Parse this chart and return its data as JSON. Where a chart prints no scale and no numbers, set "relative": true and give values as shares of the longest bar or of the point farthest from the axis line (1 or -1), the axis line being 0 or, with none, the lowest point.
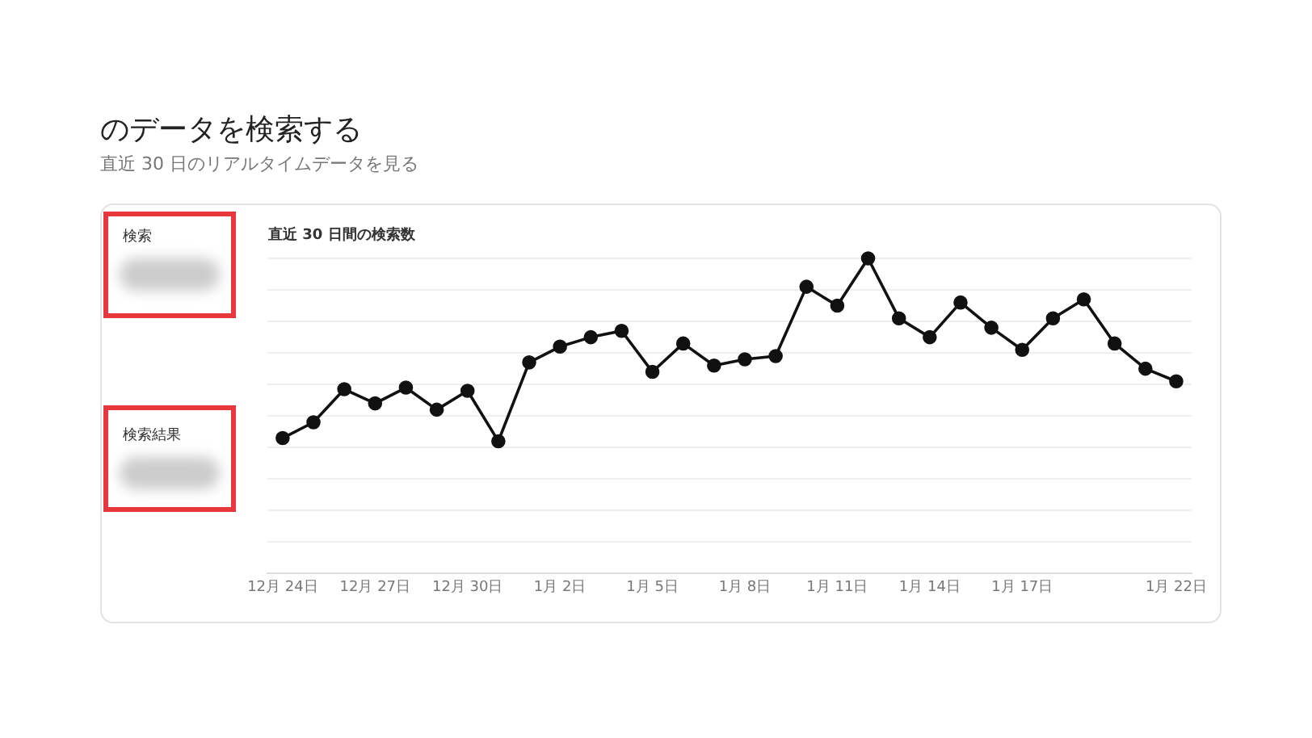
{
  "chart_data": {
    "type": "line",
    "title": "のデータを検索する",
    "subtitle": "直近 30 日のリアルタイムデータを見る",
    "ylabel": "直近 30 日間の検索数",
    "annotations": [
      "検索",
      "検索結果"
    ],
    "categories": [
      "12月 24日",
      null,
      null,
      "12月 27日",
      null,
      null,
      "12月 30日",
      null,
      null,
      "1月 2日",
      null,
      null,
      "1月 5日",
      null,
      null,
      "1月 8日",
      null,
      null,
      "1月 11日",
      null,
      null,
      "1月 14日",
      null,
      null,
      "1月 17日",
      null,
      null,
      null,
      null,
      "1月 22日"
    ],
    "series": [
      {
        "color": "#111111",
        "values": [
          0.43,
          0.48,
          0.585,
          0.54,
          0.59,
          0.52,
          0.58,
          0.42,
          0.67,
          0.72,
          0.75,
          0.77,
          0.64,
          0.73,
          0.66,
          0.68,
          0.69,
          0.91,
          0.85,
          1.0,
          0.81,
          0.75,
          0.86,
          0.78,
          0.71,
          0.81,
          0.87,
          0.73,
          0.65,
          0.61
        ]
      }
    ],
    "relative": true,
    "grid": "y",
    "marker": "circle",
    "line_style": "solid",
    "legend": false
  }
}
